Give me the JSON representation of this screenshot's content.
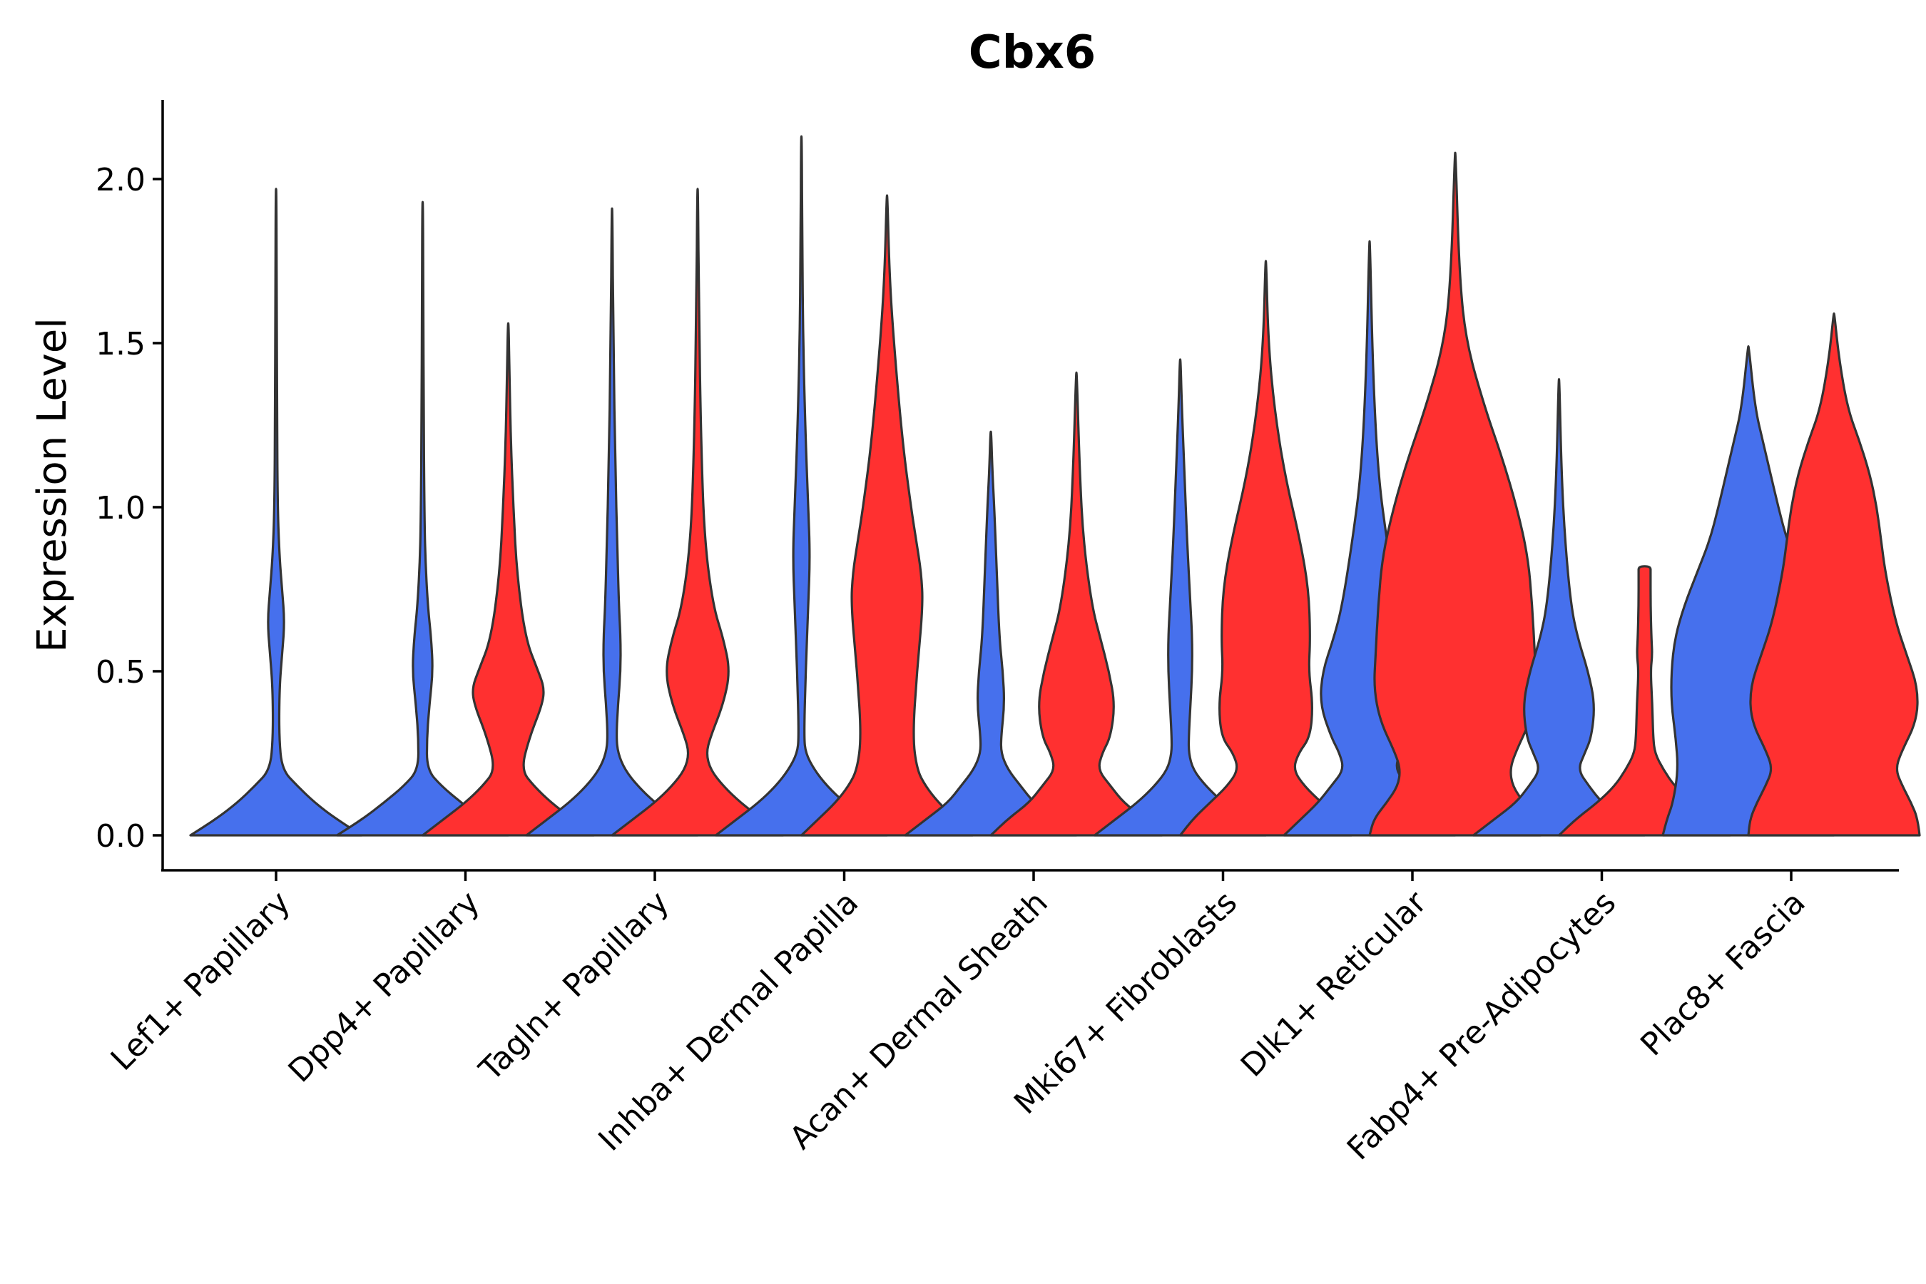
{
  "chart_data": {
    "type": "violin",
    "title": "Cbx6",
    "xlabel": "",
    "ylabel": "Expression Level",
    "ylim": [
      -0.1,
      2.22
    ],
    "yticks": [
      "0.0",
      "0.5",
      "1.0",
      "1.5",
      "2.0"
    ],
    "ytick_values": [
      0,
      0.5,
      1.0,
      1.5,
      2.0
    ],
    "grid": false,
    "legend": "none",
    "colors": {
      "group1": "#4670ED",
      "group2": "#FF3030",
      "outline": "#333333"
    },
    "categories": [
      "Lef1+ Papillary",
      "Dpp4+ Papillary",
      "Tagln+ Papillary",
      "Inhba+ Dermal Papilla",
      "Acan+ Dermal Sheath",
      "Mki67+ Fibroblasts",
      "Dlk1+ Reticular",
      "Fabp4+ Pre-Adipocytes",
      "Plac8+ Fascia"
    ],
    "violins": [
      {
        "category": "Lef1+ Papillary",
        "group": "group1",
        "max": 1.97,
        "profile": [
          [
            0,
            1.0
          ],
          [
            0.05,
            0.7
          ],
          [
            0.1,
            0.45
          ],
          [
            0.15,
            0.25
          ],
          [
            0.2,
            0.07
          ],
          [
            0.3,
            0.035
          ],
          [
            0.45,
            0.04
          ],
          [
            0.55,
            0.07
          ],
          [
            0.65,
            0.1
          ],
          [
            0.75,
            0.07
          ],
          [
            0.85,
            0.04
          ],
          [
            1.0,
            0.018
          ],
          [
            1.3,
            0.012
          ],
          [
            1.6,
            0.008
          ],
          [
            1.97,
            0.004
          ]
        ]
      },
      {
        "category": "Dpp4+ Papillary",
        "group": "group1",
        "max": 1.93,
        "profile": [
          [
            0,
            1.0
          ],
          [
            0.05,
            0.7
          ],
          [
            0.1,
            0.45
          ],
          [
            0.15,
            0.22
          ],
          [
            0.2,
            0.05
          ],
          [
            0.3,
            0.05
          ],
          [
            0.4,
            0.08
          ],
          [
            0.5,
            0.12
          ],
          [
            0.6,
            0.1
          ],
          [
            0.7,
            0.06
          ],
          [
            0.85,
            0.03
          ],
          [
            1.0,
            0.02
          ],
          [
            1.3,
            0.012
          ],
          [
            1.6,
            0.008
          ],
          [
            1.93,
            0.004
          ]
        ]
      },
      {
        "category": "Dpp4+ Papillary",
        "group": "group2",
        "max": 1.56,
        "profile": [
          [
            0,
            1.0
          ],
          [
            0.05,
            0.75
          ],
          [
            0.1,
            0.5
          ],
          [
            0.15,
            0.3
          ],
          [
            0.2,
            0.15
          ],
          [
            0.3,
            0.25
          ],
          [
            0.4,
            0.4
          ],
          [
            0.45,
            0.42
          ],
          [
            0.5,
            0.35
          ],
          [
            0.6,
            0.2
          ],
          [
            0.8,
            0.1
          ],
          [
            1.0,
            0.06
          ],
          [
            1.2,
            0.03
          ],
          [
            1.4,
            0.015
          ],
          [
            1.56,
            0.004
          ]
        ]
      },
      {
        "category": "Tagln+ Papillary",
        "group": "group1",
        "max": 1.91,
        "profile": [
          [
            0,
            1.0
          ],
          [
            0.05,
            0.75
          ],
          [
            0.1,
            0.5
          ],
          [
            0.15,
            0.3
          ],
          [
            0.2,
            0.15
          ],
          [
            0.25,
            0.07
          ],
          [
            0.3,
            0.05
          ],
          [
            0.4,
            0.07
          ],
          [
            0.5,
            0.1
          ],
          [
            0.6,
            0.1
          ],
          [
            0.7,
            0.08
          ],
          [
            0.9,
            0.06
          ],
          [
            1.1,
            0.04
          ],
          [
            1.5,
            0.015
          ],
          [
            1.91,
            0.004
          ]
        ]
      },
      {
        "category": "Tagln+ Papillary",
        "group": "group2",
        "max": 1.97,
        "profile": [
          [
            0,
            1.0
          ],
          [
            0.05,
            0.75
          ],
          [
            0.1,
            0.5
          ],
          [
            0.15,
            0.3
          ],
          [
            0.2,
            0.15
          ],
          [
            0.25,
            0.1
          ],
          [
            0.3,
            0.15
          ],
          [
            0.4,
            0.3
          ],
          [
            0.5,
            0.38
          ],
          [
            0.6,
            0.3
          ],
          [
            0.7,
            0.18
          ],
          [
            0.9,
            0.08
          ],
          [
            1.2,
            0.04
          ],
          [
            1.6,
            0.015
          ],
          [
            1.97,
            0.004
          ]
        ]
      },
      {
        "category": "Inhba+ Dermal Papilla",
        "group": "group1",
        "max": 2.13,
        "profile": [
          [
            0,
            1.0
          ],
          [
            0.05,
            0.75
          ],
          [
            0.1,
            0.5
          ],
          [
            0.15,
            0.3
          ],
          [
            0.2,
            0.15
          ],
          [
            0.25,
            0.05
          ],
          [
            0.3,
            0.03
          ],
          [
            0.5,
            0.05
          ],
          [
            0.7,
            0.08
          ],
          [
            0.85,
            0.1
          ],
          [
            1.0,
            0.08
          ],
          [
            1.2,
            0.05
          ],
          [
            1.5,
            0.02
          ],
          [
            1.8,
            0.01
          ],
          [
            2.13,
            0.004
          ]
        ]
      },
      {
        "category": "Inhba+ Dermal Papilla",
        "group": "group2",
        "max": 1.95,
        "profile": [
          [
            0,
            1.0
          ],
          [
            0.05,
            0.8
          ],
          [
            0.1,
            0.6
          ],
          [
            0.15,
            0.45
          ],
          [
            0.2,
            0.35
          ],
          [
            0.3,
            0.3
          ],
          [
            0.5,
            0.35
          ],
          [
            0.7,
            0.42
          ],
          [
            0.8,
            0.4
          ],
          [
            0.9,
            0.34
          ],
          [
            1.0,
            0.28
          ],
          [
            1.2,
            0.18
          ],
          [
            1.5,
            0.08
          ],
          [
            1.7,
            0.03
          ],
          [
            1.95,
            0.004
          ]
        ]
      },
      {
        "category": "Acan+ Dermal Sheath",
        "group": "group1",
        "max": 1.23,
        "profile": [
          [
            0,
            1.0
          ],
          [
            0.05,
            0.75
          ],
          [
            0.1,
            0.5
          ],
          [
            0.15,
            0.35
          ],
          [
            0.2,
            0.2
          ],
          [
            0.25,
            0.12
          ],
          [
            0.3,
            0.12
          ],
          [
            0.4,
            0.16
          ],
          [
            0.5,
            0.14
          ],
          [
            0.6,
            0.1
          ],
          [
            0.8,
            0.07
          ],
          [
            1.0,
            0.04
          ],
          [
            1.1,
            0.02
          ],
          [
            1.23,
            0.004
          ]
        ]
      },
      {
        "category": "Acan+ Dermal Sheath",
        "group": "group2",
        "max": 1.41,
        "profile": [
          [
            0,
            1.0
          ],
          [
            0.05,
            0.8
          ],
          [
            0.1,
            0.55
          ],
          [
            0.15,
            0.4
          ],
          [
            0.2,
            0.25
          ],
          [
            0.25,
            0.3
          ],
          [
            0.3,
            0.4
          ],
          [
            0.4,
            0.45
          ],
          [
            0.5,
            0.38
          ],
          [
            0.6,
            0.28
          ],
          [
            0.7,
            0.18
          ],
          [
            0.9,
            0.08
          ],
          [
            1.1,
            0.04
          ],
          [
            1.41,
            0.004
          ]
        ]
      },
      {
        "category": "Mki67+ Fibroblasts",
        "group": "group1",
        "max": 1.45,
        "profile": [
          [
            0,
            1.0
          ],
          [
            0.05,
            0.75
          ],
          [
            0.1,
            0.5
          ],
          [
            0.15,
            0.3
          ],
          [
            0.2,
            0.15
          ],
          [
            0.25,
            0.1
          ],
          [
            0.3,
            0.1
          ],
          [
            0.4,
            0.12
          ],
          [
            0.5,
            0.14
          ],
          [
            0.6,
            0.14
          ],
          [
            0.7,
            0.12
          ],
          [
            0.9,
            0.08
          ],
          [
            1.1,
            0.05
          ],
          [
            1.3,
            0.02
          ],
          [
            1.45,
            0.004
          ]
        ]
      },
      {
        "category": "Mki67+ Fibroblasts",
        "group": "group2",
        "max": 1.75,
        "profile": [
          [
            0,
            1.0
          ],
          [
            0.05,
            0.85
          ],
          [
            0.1,
            0.65
          ],
          [
            0.15,
            0.45
          ],
          [
            0.2,
            0.32
          ],
          [
            0.25,
            0.38
          ],
          [
            0.3,
            0.52
          ],
          [
            0.4,
            0.55
          ],
          [
            0.5,
            0.5
          ],
          [
            0.6,
            0.52
          ],
          [
            0.75,
            0.5
          ],
          [
            0.9,
            0.4
          ],
          [
            1.1,
            0.22
          ],
          [
            1.3,
            0.1
          ],
          [
            1.5,
            0.03
          ],
          [
            1.75,
            0.004
          ]
        ]
      },
      {
        "category": "Dlk1+ Reticular",
        "group": "group1",
        "max": 1.81,
        "profile": [
          [
            0,
            1.0
          ],
          [
            0.05,
            0.8
          ],
          [
            0.1,
            0.6
          ],
          [
            0.15,
            0.45
          ],
          [
            0.2,
            0.3
          ],
          [
            0.25,
            0.35
          ],
          [
            0.3,
            0.45
          ],
          [
            0.4,
            0.58
          ],
          [
            0.5,
            0.55
          ],
          [
            0.6,
            0.42
          ],
          [
            0.7,
            0.32
          ],
          [
            0.9,
            0.2
          ],
          [
            1.1,
            0.1
          ],
          [
            1.4,
            0.04
          ],
          [
            1.81,
            0.004
          ]
        ]
      },
      {
        "category": "Dlk1+ Reticular",
        "group": "group2",
        "max": 2.08,
        "profile": [
          [
            0,
            1.0
          ],
          [
            0.05,
            0.95
          ],
          [
            0.1,
            0.8
          ],
          [
            0.15,
            0.67
          ],
          [
            0.2,
            0.64
          ],
          [
            0.25,
            0.7
          ],
          [
            0.35,
            0.88
          ],
          [
            0.45,
            0.95
          ],
          [
            0.55,
            0.93
          ],
          [
            0.7,
            0.9
          ],
          [
            0.85,
            0.85
          ],
          [
            1.0,
            0.72
          ],
          [
            1.15,
            0.55
          ],
          [
            1.3,
            0.35
          ],
          [
            1.5,
            0.13
          ],
          [
            1.7,
            0.05
          ],
          [
            2.08,
            0.004
          ]
        ]
      },
      {
        "category": "Fabp4+ Pre-Adipocytes",
        "group": "group1",
        "max": 1.39,
        "profile": [
          [
            0,
            1.0
          ],
          [
            0.05,
            0.75
          ],
          [
            0.1,
            0.5
          ],
          [
            0.15,
            0.35
          ],
          [
            0.2,
            0.22
          ],
          [
            0.25,
            0.3
          ],
          [
            0.3,
            0.38
          ],
          [
            0.4,
            0.42
          ],
          [
            0.5,
            0.34
          ],
          [
            0.6,
            0.22
          ],
          [
            0.7,
            0.14
          ],
          [
            0.9,
            0.07
          ],
          [
            1.1,
            0.03
          ],
          [
            1.39,
            0.004
          ]
        ]
      },
      {
        "category": "Fabp4+ Pre-Adipocytes",
        "group": "group2",
        "max": 0.82,
        "profile": [
          [
            0,
            1.0
          ],
          [
            0.05,
            0.8
          ],
          [
            0.1,
            0.55
          ],
          [
            0.15,
            0.35
          ],
          [
            0.2,
            0.22
          ],
          [
            0.25,
            0.12
          ],
          [
            0.3,
            0.1
          ],
          [
            0.4,
            0.09
          ],
          [
            0.5,
            0.07
          ],
          [
            0.55,
            0.09
          ],
          [
            0.6,
            0.08
          ],
          [
            0.7,
            0.07
          ],
          [
            0.8,
            0.07
          ],
          [
            0.82,
            0.07
          ]
        ]
      },
      {
        "category": "Plac8+ Fascia",
        "group": "group1",
        "max": 1.49,
        "profile": [
          [
            0,
            1.0
          ],
          [
            0.05,
            0.95
          ],
          [
            0.1,
            0.88
          ],
          [
            0.2,
            0.82
          ],
          [
            0.3,
            0.85
          ],
          [
            0.4,
            0.9
          ],
          [
            0.5,
            0.9
          ],
          [
            0.6,
            0.86
          ],
          [
            0.7,
            0.75
          ],
          [
            0.8,
            0.6
          ],
          [
            0.9,
            0.45
          ],
          [
            1.0,
            0.35
          ],
          [
            1.1,
            0.26
          ],
          [
            1.2,
            0.17
          ],
          [
            1.3,
            0.08
          ],
          [
            1.49,
            0.004
          ]
        ]
      },
      {
        "category": "Plac8+ Fascia",
        "group": "group2",
        "max": 1.59,
        "profile": [
          [
            0,
            1.0
          ],
          [
            0.05,
            0.98
          ],
          [
            0.1,
            0.9
          ],
          [
            0.15,
            0.8
          ],
          [
            0.2,
            0.72
          ],
          [
            0.25,
            0.78
          ],
          [
            0.35,
            0.97
          ],
          [
            0.45,
            0.98
          ],
          [
            0.55,
            0.85
          ],
          [
            0.65,
            0.72
          ],
          [
            0.8,
            0.6
          ],
          [
            0.9,
            0.55
          ],
          [
            1.0,
            0.5
          ],
          [
            1.1,
            0.42
          ],
          [
            1.2,
            0.3
          ],
          [
            1.3,
            0.16
          ],
          [
            1.45,
            0.06
          ],
          [
            1.59,
            0.004
          ]
        ]
      }
    ]
  }
}
